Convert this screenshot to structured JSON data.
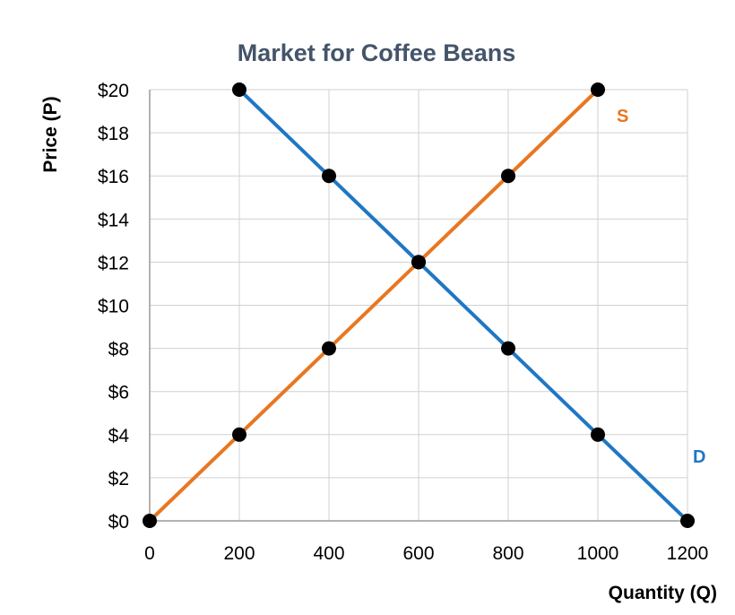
{
  "chart_data": {
    "type": "line",
    "title": "Market for Coffee Beans",
    "xlabel": "Quantity (Q)",
    "ylabel": "Price (P)",
    "xlim": [
      0,
      1200
    ],
    "ylim": [
      0,
      20
    ],
    "x_ticks": [
      0,
      200,
      400,
      600,
      800,
      1000,
      1200
    ],
    "y_ticks": [
      0,
      2,
      4,
      6,
      8,
      10,
      12,
      14,
      16,
      18,
      20
    ],
    "x_tick_labels": [
      "0",
      "200",
      "400",
      "600",
      "800",
      "1000",
      "1200"
    ],
    "y_tick_labels": [
      "$0",
      "$2",
      "$4",
      "$6",
      "$8",
      "$10",
      "$12",
      "$14",
      "$16",
      "$18",
      "$20"
    ],
    "grid": true,
    "series": [
      {
        "name": "S",
        "color": "#e87722",
        "x": [
          0,
          1000
        ],
        "y": [
          0,
          20
        ],
        "markers": [
          [
            0,
            0
          ],
          [
            200,
            4
          ],
          [
            400,
            8
          ],
          [
            600,
            12
          ],
          [
            800,
            16
          ],
          [
            1000,
            20
          ]
        ]
      },
      {
        "name": "D",
        "color": "#1f77c4",
        "x": [
          200,
          1200
        ],
        "y": [
          20,
          0
        ],
        "markers": [
          [
            200,
            20
          ],
          [
            400,
            16
          ],
          [
            600,
            12
          ],
          [
            800,
            8
          ],
          [
            1000,
            4
          ],
          [
            1200,
            0
          ]
        ]
      }
    ]
  }
}
